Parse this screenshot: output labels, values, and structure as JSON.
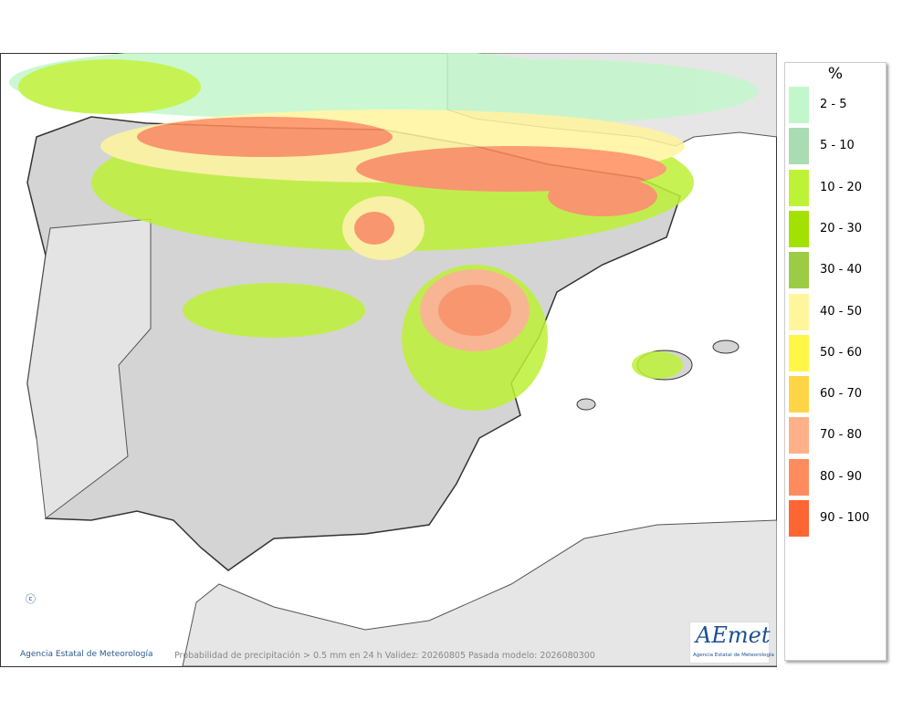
{
  "legend": {
    "title": "%",
    "items": [
      {
        "label": "2 - 5",
        "color": "#c2f7cb"
      },
      {
        "label": "5 - 10",
        "color": "#a9dcb2"
      },
      {
        "label": "10 - 20",
        "color": "#bdf236"
      },
      {
        "label": "20 - 30",
        "color": "#a3e100"
      },
      {
        "label": "30 - 40",
        "color": "#9ccc45"
      },
      {
        "label": "40 - 50",
        "color": "#fff59d"
      },
      {
        "label": "50 - 60",
        "color": "#fff645"
      },
      {
        "label": "60 - 70",
        "color": "#ffd545"
      },
      {
        "label": "70 - 80",
        "color": "#ffb088"
      },
      {
        "label": "80 - 90",
        "color": "#ff8c5e"
      },
      {
        "label": "90 - 100",
        "color": "#ff6633"
      }
    ]
  },
  "footer": {
    "credit": "Agencia Estatal de Meteorología",
    "caption": "Probabilidad de precipitación > 0.5 mm en 24 h Validez: 20260805 Pasada modelo: 2026080300"
  },
  "logo": {
    "name": "AEmet",
    "subtitle": "Agencia Estatal de Meteorología"
  }
}
